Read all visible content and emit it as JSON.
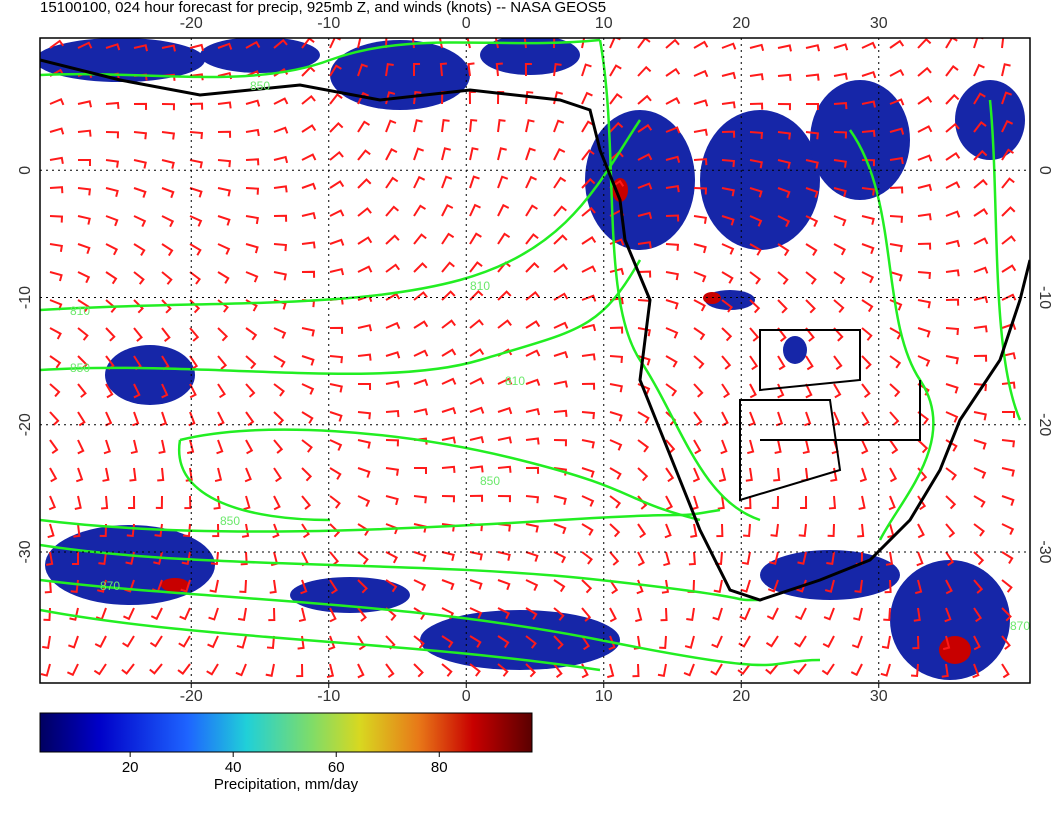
{
  "title": "15100100, 024 hour forecast for precip, 925mb Z, and winds (knots) -- NASA GEOS5",
  "map": {
    "lonlim": [
      -31,
      41
    ],
    "latlim": [
      -40.3,
      10.4
    ],
    "lonticks": [
      -20,
      -10,
      0,
      10,
      20,
      30
    ],
    "latticks": [
      0,
      -10,
      -20,
      -30
    ],
    "contour_labels": [
      "810",
      "850",
      "810",
      "850",
      "850",
      "850",
      "810",
      "870",
      "870"
    ]
  },
  "colorbar": {
    "lim": [
      2.5,
      98
    ],
    "ticks": [
      20,
      40,
      60,
      80
    ],
    "label": "Precipitation, mm/day"
  }
}
